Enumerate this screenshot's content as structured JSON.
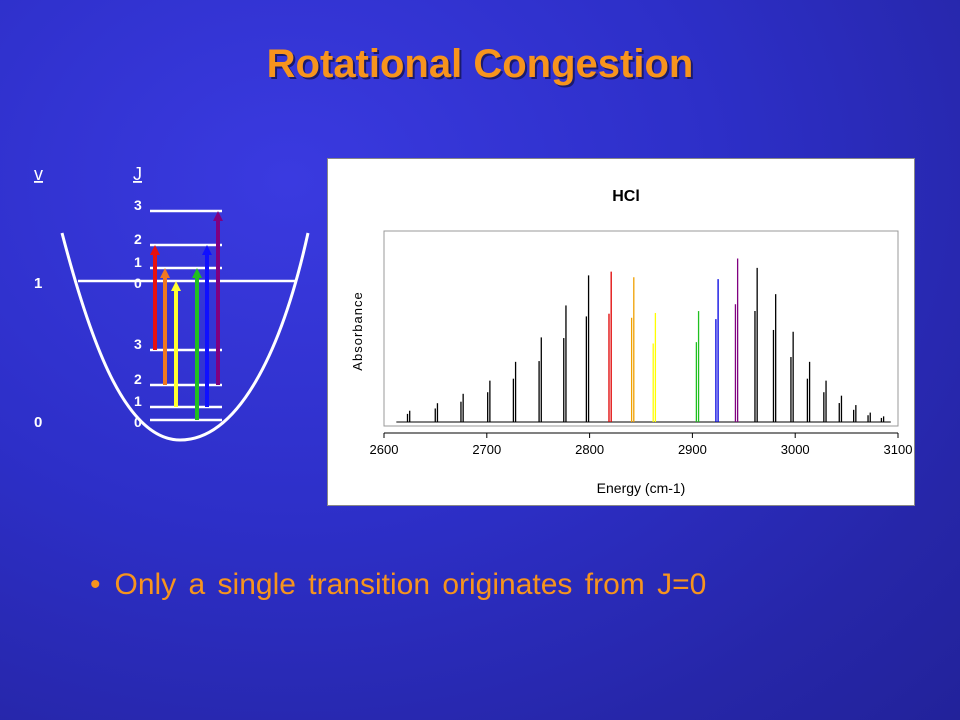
{
  "slide": {
    "title": "Rotational Congestion",
    "bullet": "Only a single transition originates from J=0"
  },
  "diagram": {
    "v_header": "v",
    "j_header": "J",
    "v_labels": [
      "1",
      "0"
    ],
    "upper_j_labels": [
      "3",
      "2",
      "1",
      "0"
    ],
    "lower_j_labels": [
      "3",
      "2",
      "1",
      "0"
    ],
    "arrow_colors": [
      "#e81010",
      "#f07820",
      "#ffff30",
      "#20c020",
      "#1010ff",
      "#800080"
    ]
  },
  "chart_data": {
    "type": "line",
    "title": "HCl",
    "xlabel": "Energy (cm-1)",
    "ylabel": "Absorbance",
    "xlim": [
      2600,
      3100
    ],
    "xticks": [
      2600,
      2700,
      2800,
      2900,
      3000,
      3100
    ],
    "grid": false,
    "legend": "none",
    "colors": {
      "default": "#000000",
      "red": "#e00000",
      "orange": "#f0a000",
      "yellow": "#ffff00",
      "green": "#20c020",
      "blue": "#0000e0",
      "purple": "#800080"
    },
    "peaks": [
      {
        "x": 2625,
        "y": 0.06,
        "c": "default"
      },
      {
        "x": 2652,
        "y": 0.1,
        "c": "default"
      },
      {
        "x": 2677,
        "y": 0.15,
        "c": "default"
      },
      {
        "x": 2703,
        "y": 0.22,
        "c": "default"
      },
      {
        "x": 2728,
        "y": 0.32,
        "c": "default"
      },
      {
        "x": 2753,
        "y": 0.45,
        "c": "default"
      },
      {
        "x": 2777,
        "y": 0.62,
        "c": "default"
      },
      {
        "x": 2799,
        "y": 0.78,
        "c": "default"
      },
      {
        "x": 2821,
        "y": 0.8,
        "c": "red"
      },
      {
        "x": 2843,
        "y": 0.77,
        "c": "orange"
      },
      {
        "x": 2864,
        "y": 0.58,
        "c": "yellow"
      },
      {
        "x": 2906,
        "y": 0.59,
        "c": "green"
      },
      {
        "x": 2925,
        "y": 0.76,
        "c": "blue"
      },
      {
        "x": 2944,
        "y": 0.87,
        "c": "purple"
      },
      {
        "x": 2963,
        "y": 0.82,
        "c": "default"
      },
      {
        "x": 2981,
        "y": 0.68,
        "c": "default"
      },
      {
        "x": 2998,
        "y": 0.48,
        "c": "default"
      },
      {
        "x": 3014,
        "y": 0.32,
        "c": "default"
      },
      {
        "x": 3030,
        "y": 0.22,
        "c": "default"
      },
      {
        "x": 3045,
        "y": 0.14,
        "c": "default"
      },
      {
        "x": 3059,
        "y": 0.09,
        "c": "default"
      },
      {
        "x": 3073,
        "y": 0.05,
        "c": "default"
      },
      {
        "x": 3086,
        "y": 0.03,
        "c": "default"
      }
    ]
  }
}
